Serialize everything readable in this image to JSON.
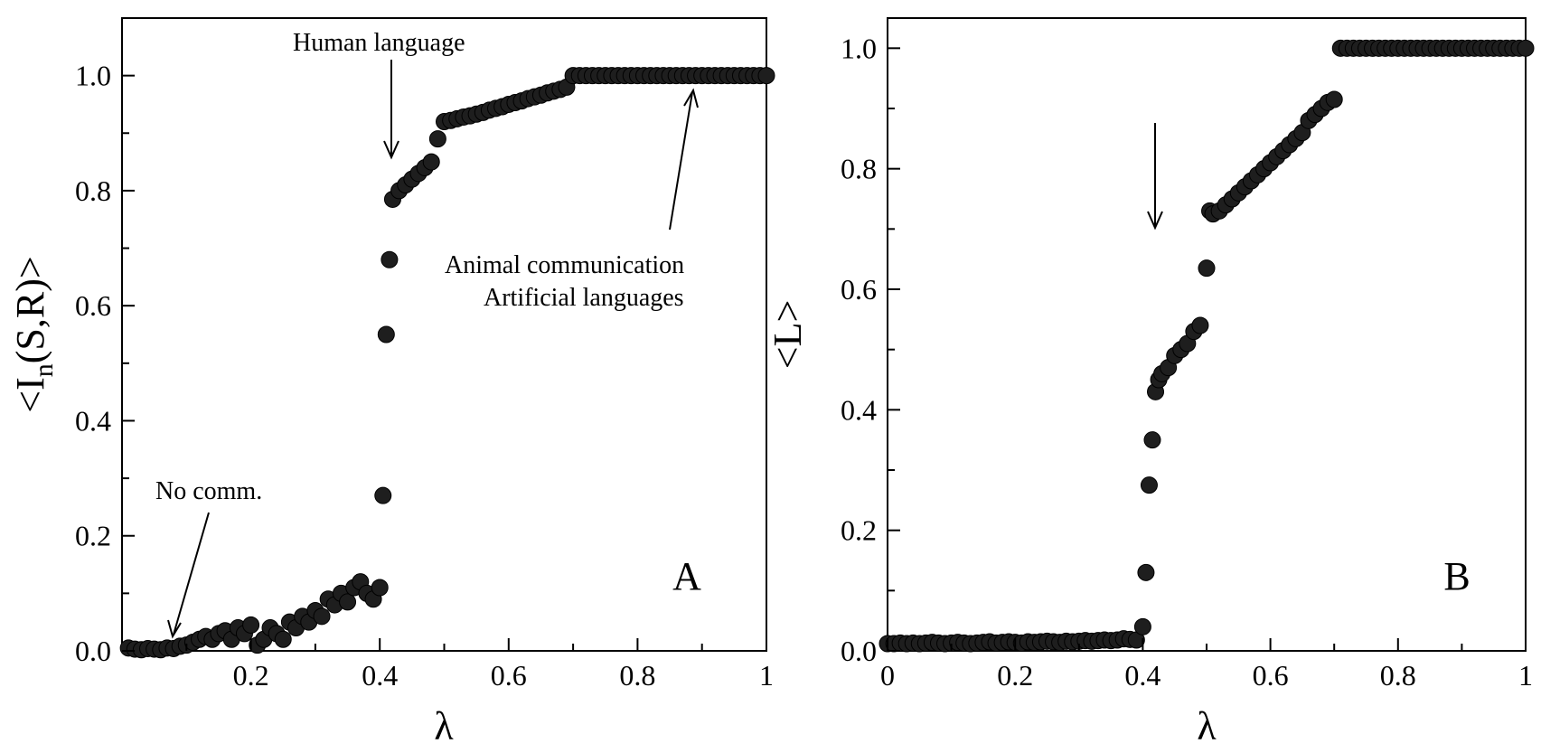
{
  "chart_data": [
    {
      "type": "scatter",
      "panel_label": "A",
      "xlabel": "λ",
      "ylabel": "<I_n(S,R)>",
      "ylabel_parts": {
        "prefix": "<I",
        "sub": "n",
        "suffix": "(S,R)>"
      },
      "xlim": [
        0,
        1
      ],
      "ylim": [
        0,
        1.1
      ],
      "xticks": [
        "0.2",
        "0.4",
        "0.6",
        "0.8",
        "1"
      ],
      "yticks": [
        "0.0",
        "0.2",
        "0.4",
        "0.6",
        "0.8",
        "1.0"
      ],
      "grid": false,
      "annotations": [
        {
          "text": "Human language"
        },
        {
          "text": "No comm."
        },
        {
          "text": "Animal communication"
        },
        {
          "text": "Artificial languages"
        }
      ],
      "x": [
        0.01,
        0.02,
        0.03,
        0.04,
        0.05,
        0.06,
        0.07,
        0.08,
        0.09,
        0.1,
        0.11,
        0.12,
        0.13,
        0.14,
        0.15,
        0.16,
        0.17,
        0.18,
        0.19,
        0.2,
        0.21,
        0.22,
        0.23,
        0.24,
        0.25,
        0.26,
        0.27,
        0.28,
        0.29,
        0.3,
        0.31,
        0.32,
        0.33,
        0.34,
        0.35,
        0.36,
        0.37,
        0.38,
        0.39,
        0.4,
        0.405,
        0.41,
        0.415,
        0.42,
        0.43,
        0.44,
        0.45,
        0.46,
        0.47,
        0.48,
        0.49,
        0.5,
        0.51,
        0.52,
        0.53,
        0.54,
        0.55,
        0.56,
        0.57,
        0.58,
        0.59,
        0.6,
        0.61,
        0.62,
        0.63,
        0.64,
        0.65,
        0.66,
        0.67,
        0.68,
        0.69,
        0.7,
        0.71,
        0.72,
        0.73,
        0.74,
        0.75,
        0.76,
        0.77,
        0.78,
        0.79,
        0.8,
        0.81,
        0.82,
        0.83,
        0.84,
        0.85,
        0.86,
        0.87,
        0.88,
        0.89,
        0.9,
        0.91,
        0.92,
        0.93,
        0.94,
        0.95,
        0.96,
        0.97,
        0.98,
        0.99,
        1.0
      ],
      "y": [
        0.005,
        0.003,
        0.002,
        0.004,
        0.003,
        0.002,
        0.005,
        0.004,
        0.008,
        0.01,
        0.015,
        0.02,
        0.025,
        0.02,
        0.03,
        0.035,
        0.02,
        0.04,
        0.03,
        0.045,
        0.01,
        0.02,
        0.04,
        0.03,
        0.02,
        0.05,
        0.04,
        0.06,
        0.05,
        0.07,
        0.06,
        0.09,
        0.08,
        0.1,
        0.085,
        0.11,
        0.12,
        0.1,
        0.09,
        0.11,
        0.27,
        0.55,
        0.68,
        0.785,
        0.8,
        0.81,
        0.82,
        0.83,
        0.84,
        0.85,
        0.89,
        0.92,
        0.922,
        0.925,
        0.928,
        0.93,
        0.933,
        0.936,
        0.94,
        0.943,
        0.946,
        0.95,
        0.953,
        0.956,
        0.96,
        0.963,
        0.966,
        0.97,
        0.973,
        0.976,
        0.98,
        1.0,
        1.0,
        1.0,
        1.0,
        1.0,
        1.0,
        1.0,
        1.0,
        1.0,
        1.0,
        1.0,
        1.0,
        1.0,
        1.0,
        1.0,
        1.0,
        1.0,
        1.0,
        1.0,
        1.0,
        1.0,
        1.0,
        1.0,
        1.0,
        1.0,
        1.0,
        1.0,
        1.0,
        1.0,
        1.0,
        1.0
      ]
    },
    {
      "type": "scatter",
      "panel_label": "B",
      "xlabel": "λ",
      "ylabel": "<L>",
      "xlim": [
        0,
        1
      ],
      "ylim": [
        0,
        1.05
      ],
      "xticks": [
        "0",
        "0.2",
        "0.4",
        "0.6",
        "0.8",
        "1"
      ],
      "yticks": [
        "0.0",
        "0.2",
        "0.4",
        "0.6",
        "0.8",
        "1.0"
      ],
      "grid": false,
      "x": [
        0.0,
        0.01,
        0.02,
        0.03,
        0.04,
        0.05,
        0.06,
        0.07,
        0.08,
        0.09,
        0.1,
        0.11,
        0.12,
        0.13,
        0.14,
        0.15,
        0.16,
        0.17,
        0.18,
        0.19,
        0.2,
        0.21,
        0.22,
        0.23,
        0.24,
        0.25,
        0.26,
        0.27,
        0.28,
        0.29,
        0.3,
        0.31,
        0.32,
        0.33,
        0.34,
        0.35,
        0.36,
        0.37,
        0.38,
        0.39,
        0.4,
        0.405,
        0.41,
        0.415,
        0.42,
        0.425,
        0.43,
        0.44,
        0.45,
        0.46,
        0.47,
        0.48,
        0.49,
        0.5,
        0.505,
        0.51,
        0.52,
        0.53,
        0.54,
        0.55,
        0.56,
        0.57,
        0.58,
        0.59,
        0.6,
        0.61,
        0.62,
        0.63,
        0.64,
        0.65,
        0.66,
        0.67,
        0.68,
        0.69,
        0.7,
        0.71,
        0.72,
        0.73,
        0.74,
        0.75,
        0.76,
        0.77,
        0.78,
        0.79,
        0.8,
        0.81,
        0.82,
        0.83,
        0.84,
        0.85,
        0.86,
        0.87,
        0.88,
        0.89,
        0.9,
        0.91,
        0.92,
        0.93,
        0.94,
        0.95,
        0.96,
        0.97,
        0.98,
        0.99,
        1.0
      ],
      "y": [
        0.012,
        0.012,
        0.013,
        0.012,
        0.013,
        0.012,
        0.013,
        0.014,
        0.013,
        0.012,
        0.013,
        0.014,
        0.013,
        0.012,
        0.013,
        0.014,
        0.015,
        0.013,
        0.014,
        0.015,
        0.014,
        0.013,
        0.015,
        0.014,
        0.015,
        0.016,
        0.015,
        0.014,
        0.016,
        0.015,
        0.016,
        0.017,
        0.016,
        0.017,
        0.018,
        0.017,
        0.018,
        0.02,
        0.019,
        0.018,
        0.04,
        0.13,
        0.275,
        0.35,
        0.43,
        0.45,
        0.46,
        0.47,
        0.49,
        0.5,
        0.51,
        0.53,
        0.54,
        0.635,
        0.73,
        0.725,
        0.73,
        0.74,
        0.75,
        0.76,
        0.77,
        0.78,
        0.79,
        0.8,
        0.81,
        0.82,
        0.83,
        0.84,
        0.85,
        0.86,
        0.88,
        0.89,
        0.9,
        0.91,
        0.915,
        1.0,
        1.0,
        1.0,
        1.0,
        1.0,
        1.0,
        1.0,
        1.0,
        1.0,
        1.0,
        1.0,
        1.0,
        1.0,
        1.0,
        1.0,
        1.0,
        1.0,
        1.0,
        1.0,
        1.0,
        1.0,
        1.0,
        1.0,
        1.0,
        1.0,
        1.0,
        1.0,
        1.0,
        1.0,
        1.0
      ]
    }
  ]
}
